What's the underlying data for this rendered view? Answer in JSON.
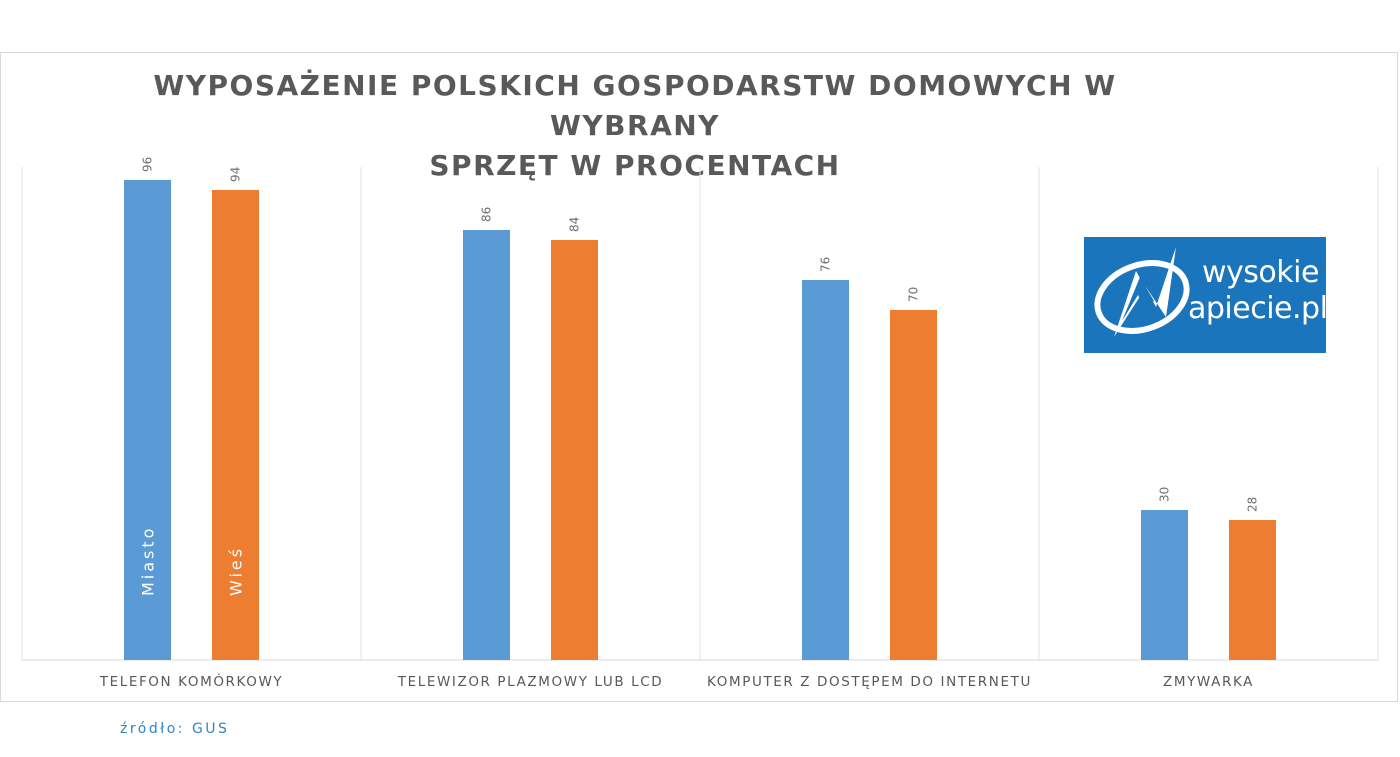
{
  "chart_data": {
    "type": "bar",
    "title": "WYPOSAŻENIE POLSKICH GOSPODARSTW DOMOWYCH W WYBRANY SPRZĘT W PROCENTACH",
    "title_lines": [
      "WYPOSAŻENIE POLSKICH GOSPODARSTW DOMOWYCH W WYBRANY",
      "SPRZĘT W PROCENTACH"
    ],
    "categories": [
      "TELEFON KOMÓRKOWY",
      "TELEWIZOR PLAZMOWY LUB LCD",
      "KOMPUTER Z DOSTĘPEM DO INTERNETU",
      "ZMYWARKA"
    ],
    "series": [
      {
        "name": "Miasto",
        "color": "#5b9bd5",
        "values": [
          96,
          86,
          76,
          30
        ]
      },
      {
        "name": "Wieś",
        "color": "#ed7d31",
        "values": [
          94,
          84,
          70,
          28
        ]
      }
    ],
    "ylim": [
      0,
      100
    ],
    "xlabel": "",
    "ylabel": "",
    "grid": "vertical category separators",
    "legend": "series names written inside first category bars",
    "data_labels": "rotated above bars"
  },
  "logo": {
    "text_line1": "wysokie",
    "text_line2": "apiecie.pl",
    "background": "#1a75bc"
  },
  "source": "źródło: GUS"
}
